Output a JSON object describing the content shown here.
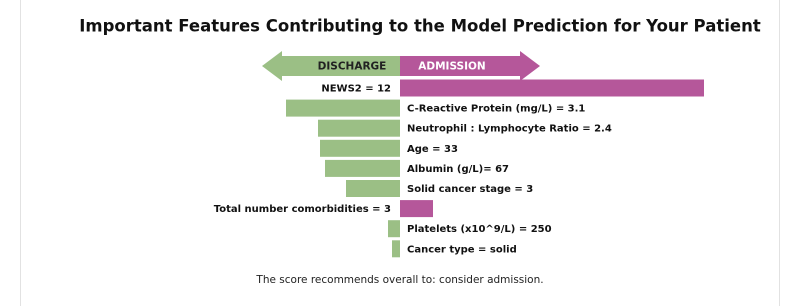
{
  "chart_data": {
    "type": "bar",
    "orientation": "horizontal",
    "title": "Important Features Contributing to the Model Prediction for Your Patient",
    "negative_direction": "DISCHARGE",
    "positive_direction": "ADMISSION",
    "negative_color": "#9bbf85",
    "positive_color": "#b5579a",
    "categories": [
      "NEWS2 = 12",
      "C-Reactive Protein (mg/L) = 3.1",
      "Neutrophil : Lymphocyte Ratio = 2.4",
      "Age = 33",
      "Albumin (g/L)= 67",
      "Solid cancer stage = 3",
      "Total number comorbidities = 3",
      "Platelets (x10^9/L) = 250",
      "Cancer type = solid"
    ],
    "values": [
      304,
      -114,
      -82,
      -80,
      -75,
      -54,
      33,
      -12,
      -8
    ],
    "note": "The score recommends overall to: consider admission."
  }
}
